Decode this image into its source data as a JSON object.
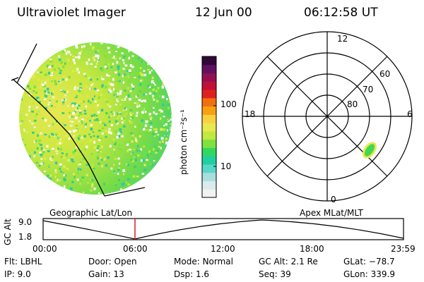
{
  "header": {
    "title": "Ultraviolet Imager",
    "date": "12 Jun 00",
    "time": "06:12:58 UT"
  },
  "image": {
    "label_geo": "Geographic Lat/Lon"
  },
  "colorbar": {
    "unit_label": "photon cm⁻²s⁻¹",
    "ticks": [
      "100",
      "10"
    ],
    "colors": [
      "#f2f2f2",
      "#d8ecec",
      "#a8dede",
      "#58d8c8",
      "#20d0a0",
      "#30d860",
      "#80e040",
      "#c0e840",
      "#e8e850",
      "#f8d040",
      "#f8a010",
      "#f07010",
      "#e02020",
      "#c01038",
      "#901050",
      "#601060",
      "#300838"
    ]
  },
  "polar": {
    "label": "Apex MLat/MLT",
    "mlt_labels": {
      "top": "12",
      "bottom": "0",
      "left": "18",
      "right": "6"
    },
    "lat_labels": [
      "60",
      "70",
      "80"
    ],
    "blob_color": "#40d850"
  },
  "timeline": {
    "axis_label": "GC Alt",
    "y_ticks": [
      "9.0",
      "1.8"
    ],
    "x_ticks": [
      "00:00",
      "06:00",
      "12:00",
      "18:00",
      "23:59"
    ],
    "marker_color": "#d02020"
  },
  "status": {
    "rows": [
      [
        {
          "label": "Flt:",
          "value": "LBHL"
        },
        {
          "label": "Door:",
          "value": "Open"
        },
        {
          "label": "Mode:",
          "value": "Normal"
        },
        {
          "label": "GC Alt:",
          "value": "2.1 Re"
        },
        {
          "label": "GLat:",
          "value": "−78.7"
        }
      ],
      [
        {
          "label": "IP:",
          "value": "9.0"
        },
        {
          "label": "Gain:",
          "value": "13"
        },
        {
          "label": "Dsp:",
          "value": "1.6"
        },
        {
          "label": "Seq:",
          "value": "39"
        },
        {
          "label": "GLon:",
          "value": "339.9"
        }
      ]
    ]
  }
}
